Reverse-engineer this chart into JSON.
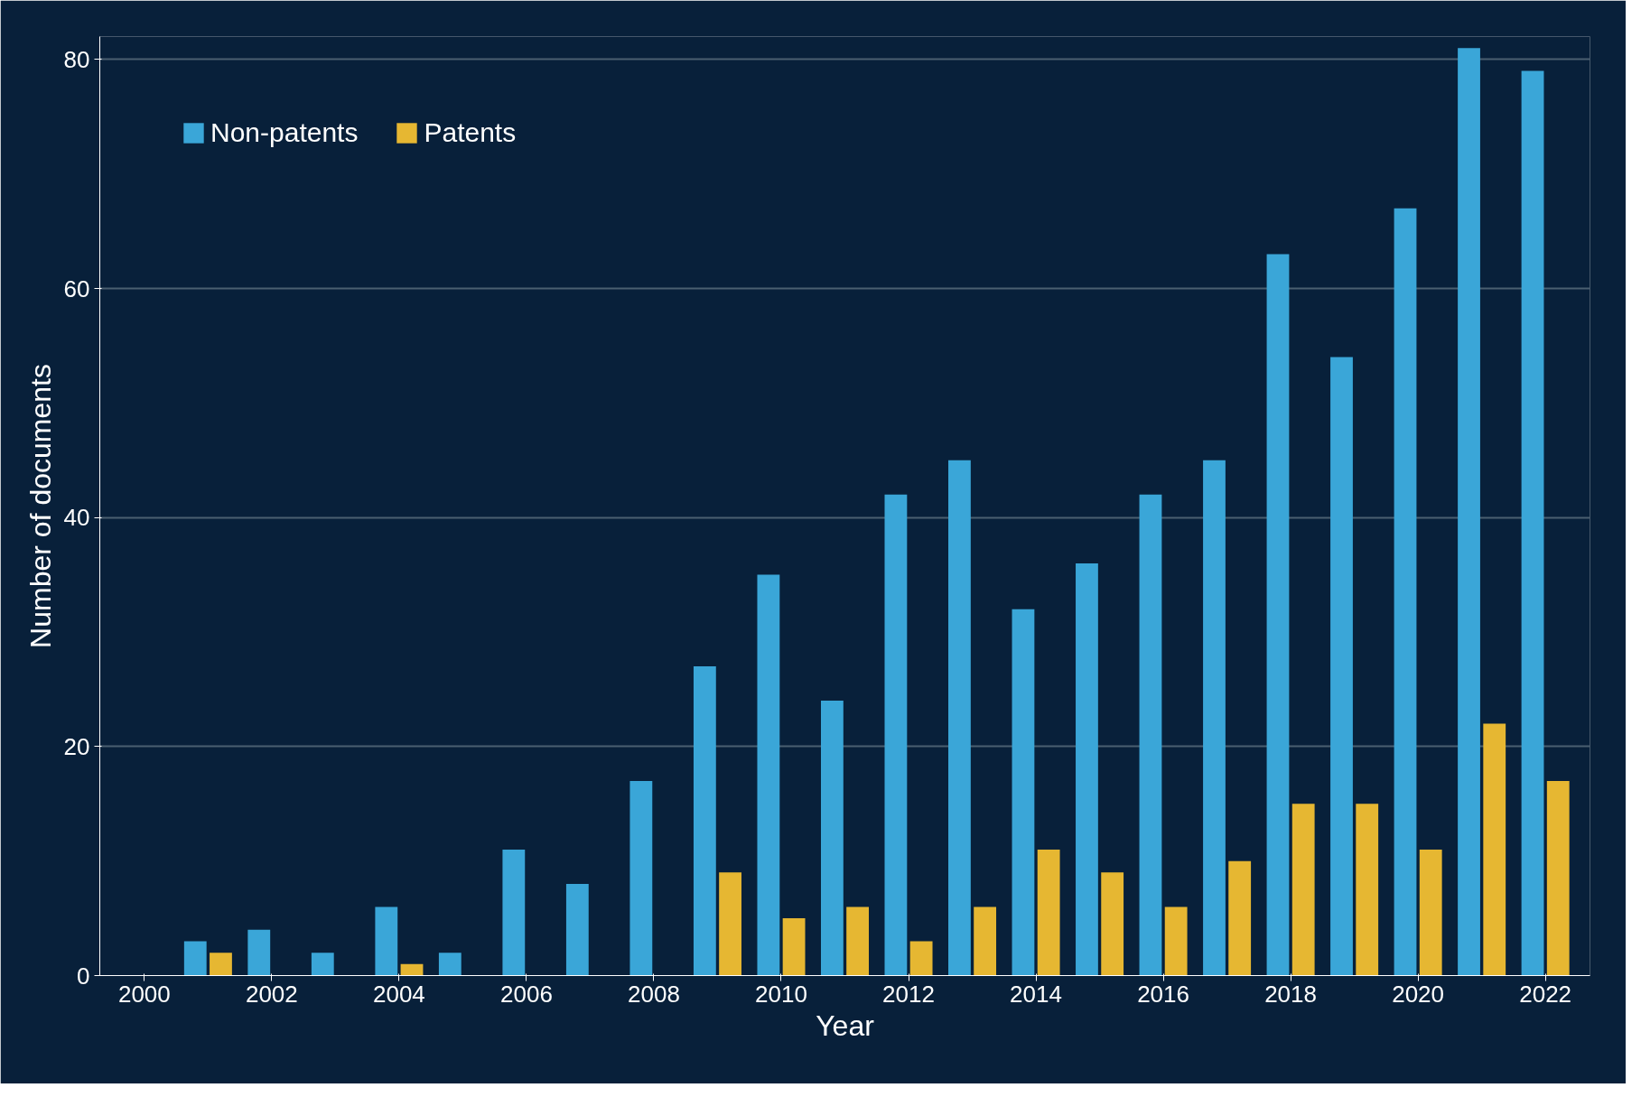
{
  "chart_data": {
    "type": "bar",
    "xlabel": "Year",
    "ylabel": "Number of documents",
    "x": [
      2001,
      2002,
      2003,
      2004,
      2005,
      2006,
      2007,
      2008,
      2009,
      2010,
      2011,
      2012,
      2013,
      2014,
      2015,
      2016,
      2017,
      2018,
      2019,
      2020,
      2021,
      2022
    ],
    "series": [
      {
        "name": "Non-patents",
        "color": "#3aa6d8",
        "values": [
          3,
          4,
          2,
          6,
          2,
          11,
          8,
          17,
          27,
          35,
          24,
          42,
          45,
          32,
          36,
          42,
          45,
          63,
          54,
          67,
          81,
          79
        ]
      },
      {
        "name": "Patents",
        "color": "#e6b732",
        "values": [
          2,
          null,
          null,
          1,
          null,
          null,
          null,
          null,
          9,
          5,
          6,
          3,
          6,
          11,
          9,
          6,
          10,
          15,
          15,
          11,
          22,
          17
        ]
      }
    ],
    "xlim": [
      1999.3,
      2022.7
    ],
    "xticks": [
      2000,
      2002,
      2004,
      2006,
      2008,
      2010,
      2012,
      2014,
      2016,
      2018,
      2020,
      2022
    ],
    "ylim": [
      0,
      82
    ],
    "yticks": [
      0,
      20,
      40,
      60,
      80
    ],
    "grid": "y",
    "legend": "top left"
  }
}
